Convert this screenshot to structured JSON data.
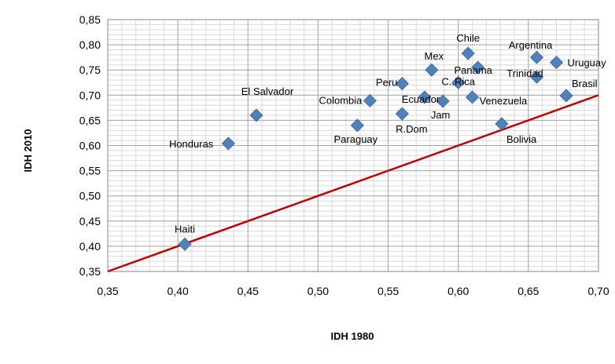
{
  "chart_data": {
    "type": "scatter",
    "title": "",
    "xlabel": "IDH 1980",
    "ylabel": "IDH 2010",
    "xlim": [
      0.35,
      0.7
    ],
    "ylim": [
      0.35,
      0.85
    ],
    "x_ticks": [
      "0,35",
      "0,40",
      "0,45",
      "0,50",
      "0,55",
      "0,60",
      "0,65",
      "0,70"
    ],
    "y_ticks": [
      "0,35",
      "0,40",
      "0,45",
      "0,50",
      "0,55",
      "0,60",
      "0,65",
      "0,70",
      "0,75",
      "0,80",
      "0,85"
    ],
    "grid": true,
    "legend": "none",
    "colors": {
      "marker": "#4f81bd",
      "reference_line": "#c00000",
      "grid": "#a6a6a6"
    },
    "reference_line": {
      "from": [
        0.35,
        0.35
      ],
      "to": [
        0.7,
        0.7
      ]
    },
    "points": [
      {
        "label": "Haiti",
        "x": 0.405,
        "y": 0.404
      },
      {
        "label": "Honduras",
        "x": 0.436,
        "y": 0.604
      },
      {
        "label": "El Salvador",
        "x": 0.456,
        "y": 0.66
      },
      {
        "label": "Paraguay",
        "x": 0.528,
        "y": 0.64
      },
      {
        "label": "Colombia",
        "x": 0.537,
        "y": 0.689
      },
      {
        "label": "R.Dom",
        "x": 0.56,
        "y": 0.663
      },
      {
        "label": "Peru",
        "x": 0.56,
        "y": 0.723
      },
      {
        "label": "Ecuador",
        "x": 0.576,
        "y": 0.696
      },
      {
        "label": "Mex",
        "x": 0.581,
        "y": 0.75
      },
      {
        "label": "Jam",
        "x": 0.589,
        "y": 0.688
      },
      {
        "label": "C..Rica",
        "x": 0.6,
        "y": 0.725
      },
      {
        "label": "Chile",
        "x": 0.607,
        "y": 0.783
      },
      {
        "label": "Venezuela",
        "x": 0.61,
        "y": 0.696
      },
      {
        "label": "Panama",
        "x": 0.614,
        "y": 0.755
      },
      {
        "label": "Bolivia",
        "x": 0.631,
        "y": 0.643
      },
      {
        "label": "Argentina",
        "x": 0.656,
        "y": 0.775
      },
      {
        "label": "Trinidad",
        "x": 0.656,
        "y": 0.736
      },
      {
        "label": "Uruguay",
        "x": 0.67,
        "y": 0.765
      },
      {
        "label": "Brasil",
        "x": 0.677,
        "y": 0.699
      }
    ]
  }
}
